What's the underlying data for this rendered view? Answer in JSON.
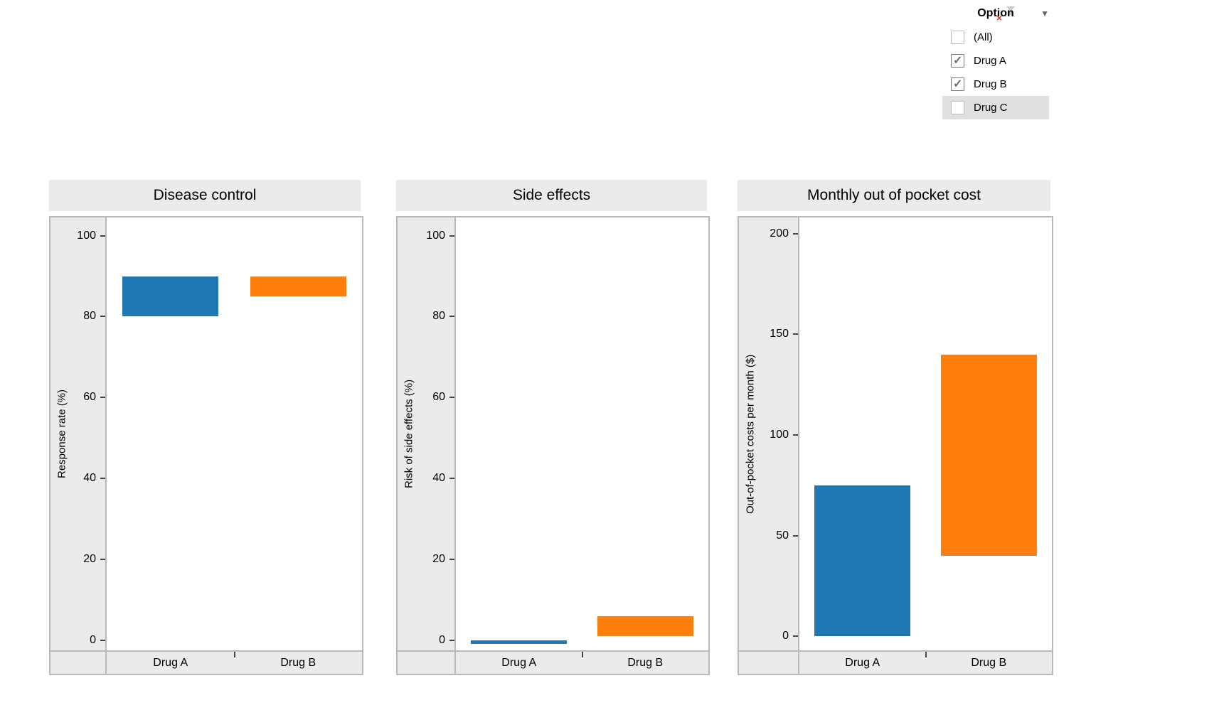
{
  "filter": {
    "title": "Option",
    "dropdown_caret": "▼",
    "remove_mark": "×",
    "check_glyph": "✓",
    "items": [
      {
        "label": "(All)",
        "checked": false,
        "highlighted": false
      },
      {
        "label": "Drug A",
        "checked": true,
        "highlighted": false
      },
      {
        "label": "Drug B",
        "checked": true,
        "highlighted": false
      },
      {
        "label": "Drug C",
        "checked": false,
        "highlighted": true
      }
    ]
  },
  "colors": {
    "blue": "#1f77b4",
    "orange": "#ff7f0e",
    "panel_bg": "#ebebeb",
    "border": "#b9b9b9",
    "highlight_row": "#e0e0e0",
    "tick": "#444444",
    "check": "#6e6e6e",
    "remove_x": "#cc4125",
    "caret": "#666666"
  },
  "chart_data": [
    {
      "type": "bar",
      "subtype": "range-gantt",
      "title": "Disease control",
      "xlabel": "",
      "ylabel": "Response rate (%)",
      "categories": [
        "Drug A",
        "Drug B"
      ],
      "series": [
        {
          "name": "Drug A",
          "low": 80,
          "high": 90,
          "color": "blue"
        },
        {
          "name": "Drug B",
          "low": 85,
          "high": 90,
          "color": "orange"
        }
      ],
      "yticks": [
        0,
        20,
        40,
        60,
        80,
        100
      ],
      "ylim": [
        -2.5,
        104.5
      ],
      "grid": false,
      "legend": false
    },
    {
      "type": "bar",
      "subtype": "range-gantt",
      "title": "Side effects",
      "xlabel": "",
      "ylabel": "Risk of side effects (%)",
      "categories": [
        "Drug A",
        "Drug B"
      ],
      "series": [
        {
          "name": "Drug A",
          "low": -1,
          "high": 0,
          "color": "blue"
        },
        {
          "name": "Drug B",
          "low": 1,
          "high": 6,
          "color": "orange"
        }
      ],
      "yticks": [
        0,
        20,
        40,
        60,
        80,
        100
      ],
      "ylim": [
        -2.5,
        104.5
      ],
      "grid": false,
      "legend": false
    },
    {
      "type": "bar",
      "subtype": "range-gantt",
      "title": "Monthly out of pocket cost",
      "xlabel": "",
      "ylabel": "Out-of-pocket costs per month ($)",
      "categories": [
        "Drug A",
        "Drug B"
      ],
      "series": [
        {
          "name": "Drug A",
          "low": 0,
          "high": 75,
          "color": "blue"
        },
        {
          "name": "Drug B",
          "low": 40,
          "high": 140,
          "color": "orange"
        }
      ],
      "yticks": [
        0,
        50,
        100,
        150,
        200
      ],
      "ylim": [
        -7,
        208
      ],
      "grid": false,
      "legend": false
    }
  ]
}
